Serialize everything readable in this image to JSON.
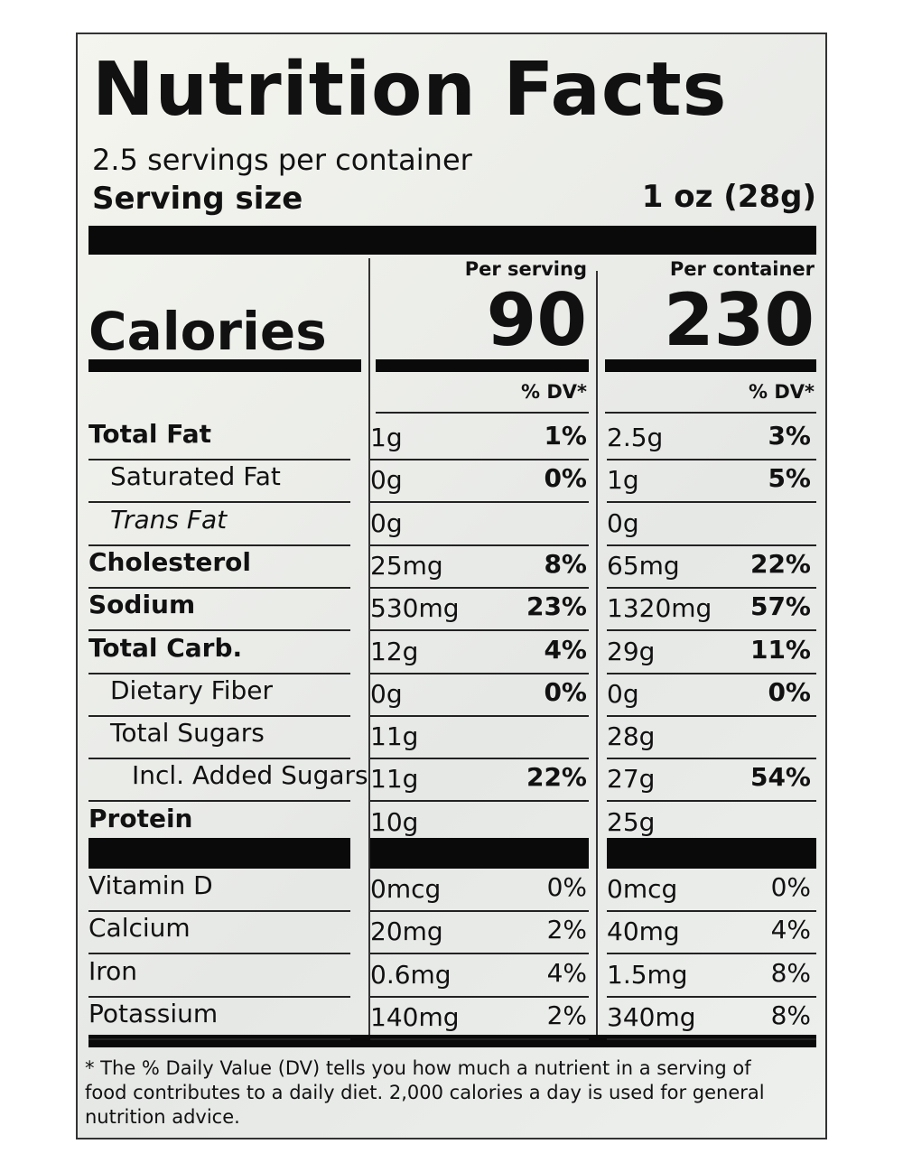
{
  "title": "Nutrition Facts",
  "servings_per_container": "2.5 servings per container",
  "serving_size": {
    "label": "Serving size",
    "value": "1 oz (28g)"
  },
  "calories": {
    "label": "Calories",
    "per_serving_label": "Per serving",
    "per_serving": 90,
    "per_container_label": "Per container",
    "per_container": 230
  },
  "dv_header": "% DV*",
  "nutrients": [
    [
      "Total Fat",
      "1g",
      "1%",
      "2.5g",
      "3%"
    ],
    [
      "Saturated Fat",
      "0g",
      "0%",
      "1g",
      "5%"
    ],
    [
      "Trans Fat",
      "0g",
      null,
      "0g",
      null
    ],
    [
      "Cholesterol",
      "25mg",
      "8%",
      "65mg",
      "22%"
    ],
    [
      "Sodium",
      "530mg",
      "23%",
      "1320mg",
      "57%"
    ],
    [
      "Total Carb.",
      "12g",
      "4%",
      "29g",
      "11%"
    ],
    [
      "Dietary Fiber",
      "0g",
      "0%",
      "0g",
      "0%"
    ],
    [
      "Total Sugars",
      "11g",
      null,
      "28g",
      null
    ],
    [
      "Incl. Added Sugars",
      "11g",
      "22%",
      "27g",
      "54%"
    ],
    [
      "Protein",
      "10g",
      null,
      "25g",
      null
    ]
  ],
  "vitamins": [
    [
      "Vitamin D",
      "0mcg",
      "0%",
      "0mcg",
      "0%"
    ],
    [
      "Calcium",
      "20mg",
      "2%",
      "40mg",
      "4%"
    ],
    [
      "Iron",
      "0.6mg",
      "4%",
      "1.5mg",
      "8%"
    ],
    [
      "Potassium",
      "140mg",
      "2%",
      "340mg",
      "8%"
    ]
  ],
  "footnote": "* The % Daily Value (DV) tells you how much a nutrient in a serving of food contributes to a daily diet. 2,000 calories a day is used for general nutrition advice."
}
